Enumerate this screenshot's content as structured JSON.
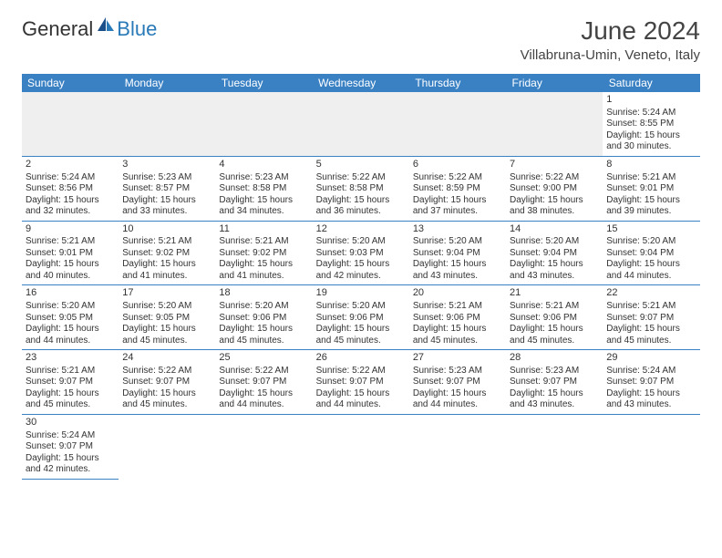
{
  "logo": {
    "text1": "General",
    "text2": "Blue"
  },
  "title": "June 2024",
  "location": "Villabruna-Umin, Veneto, Italy",
  "colors": {
    "header_bg": "#3a81c4",
    "header_text": "#ffffff",
    "blank_bg": "#efefef",
    "border": "#3a81c4",
    "logo_blue": "#2a7ab8",
    "text": "#333333"
  },
  "dayHeaders": [
    "Sunday",
    "Monday",
    "Tuesday",
    "Wednesday",
    "Thursday",
    "Friday",
    "Saturday"
  ],
  "weeks": [
    [
      null,
      null,
      null,
      null,
      null,
      null,
      {
        "n": "1",
        "sr": "Sunrise: 5:24 AM",
        "ss": "Sunset: 8:55 PM",
        "dl": "Daylight: 15 hours and 30 minutes."
      }
    ],
    [
      {
        "n": "2",
        "sr": "Sunrise: 5:24 AM",
        "ss": "Sunset: 8:56 PM",
        "dl": "Daylight: 15 hours and 32 minutes."
      },
      {
        "n": "3",
        "sr": "Sunrise: 5:23 AM",
        "ss": "Sunset: 8:57 PM",
        "dl": "Daylight: 15 hours and 33 minutes."
      },
      {
        "n": "4",
        "sr": "Sunrise: 5:23 AM",
        "ss": "Sunset: 8:58 PM",
        "dl": "Daylight: 15 hours and 34 minutes."
      },
      {
        "n": "5",
        "sr": "Sunrise: 5:22 AM",
        "ss": "Sunset: 8:58 PM",
        "dl": "Daylight: 15 hours and 36 minutes."
      },
      {
        "n": "6",
        "sr": "Sunrise: 5:22 AM",
        "ss": "Sunset: 8:59 PM",
        "dl": "Daylight: 15 hours and 37 minutes."
      },
      {
        "n": "7",
        "sr": "Sunrise: 5:22 AM",
        "ss": "Sunset: 9:00 PM",
        "dl": "Daylight: 15 hours and 38 minutes."
      },
      {
        "n": "8",
        "sr": "Sunrise: 5:21 AM",
        "ss": "Sunset: 9:01 PM",
        "dl": "Daylight: 15 hours and 39 minutes."
      }
    ],
    [
      {
        "n": "9",
        "sr": "Sunrise: 5:21 AM",
        "ss": "Sunset: 9:01 PM",
        "dl": "Daylight: 15 hours and 40 minutes."
      },
      {
        "n": "10",
        "sr": "Sunrise: 5:21 AM",
        "ss": "Sunset: 9:02 PM",
        "dl": "Daylight: 15 hours and 41 minutes."
      },
      {
        "n": "11",
        "sr": "Sunrise: 5:21 AM",
        "ss": "Sunset: 9:02 PM",
        "dl": "Daylight: 15 hours and 41 minutes."
      },
      {
        "n": "12",
        "sr": "Sunrise: 5:20 AM",
        "ss": "Sunset: 9:03 PM",
        "dl": "Daylight: 15 hours and 42 minutes."
      },
      {
        "n": "13",
        "sr": "Sunrise: 5:20 AM",
        "ss": "Sunset: 9:04 PM",
        "dl": "Daylight: 15 hours and 43 minutes."
      },
      {
        "n": "14",
        "sr": "Sunrise: 5:20 AM",
        "ss": "Sunset: 9:04 PM",
        "dl": "Daylight: 15 hours and 43 minutes."
      },
      {
        "n": "15",
        "sr": "Sunrise: 5:20 AM",
        "ss": "Sunset: 9:04 PM",
        "dl": "Daylight: 15 hours and 44 minutes."
      }
    ],
    [
      {
        "n": "16",
        "sr": "Sunrise: 5:20 AM",
        "ss": "Sunset: 9:05 PM",
        "dl": "Daylight: 15 hours and 44 minutes."
      },
      {
        "n": "17",
        "sr": "Sunrise: 5:20 AM",
        "ss": "Sunset: 9:05 PM",
        "dl": "Daylight: 15 hours and 45 minutes."
      },
      {
        "n": "18",
        "sr": "Sunrise: 5:20 AM",
        "ss": "Sunset: 9:06 PM",
        "dl": "Daylight: 15 hours and 45 minutes."
      },
      {
        "n": "19",
        "sr": "Sunrise: 5:20 AM",
        "ss": "Sunset: 9:06 PM",
        "dl": "Daylight: 15 hours and 45 minutes."
      },
      {
        "n": "20",
        "sr": "Sunrise: 5:21 AM",
        "ss": "Sunset: 9:06 PM",
        "dl": "Daylight: 15 hours and 45 minutes."
      },
      {
        "n": "21",
        "sr": "Sunrise: 5:21 AM",
        "ss": "Sunset: 9:06 PM",
        "dl": "Daylight: 15 hours and 45 minutes."
      },
      {
        "n": "22",
        "sr": "Sunrise: 5:21 AM",
        "ss": "Sunset: 9:07 PM",
        "dl": "Daylight: 15 hours and 45 minutes."
      }
    ],
    [
      {
        "n": "23",
        "sr": "Sunrise: 5:21 AM",
        "ss": "Sunset: 9:07 PM",
        "dl": "Daylight: 15 hours and 45 minutes."
      },
      {
        "n": "24",
        "sr": "Sunrise: 5:22 AM",
        "ss": "Sunset: 9:07 PM",
        "dl": "Daylight: 15 hours and 45 minutes."
      },
      {
        "n": "25",
        "sr": "Sunrise: 5:22 AM",
        "ss": "Sunset: 9:07 PM",
        "dl": "Daylight: 15 hours and 44 minutes."
      },
      {
        "n": "26",
        "sr": "Sunrise: 5:22 AM",
        "ss": "Sunset: 9:07 PM",
        "dl": "Daylight: 15 hours and 44 minutes."
      },
      {
        "n": "27",
        "sr": "Sunrise: 5:23 AM",
        "ss": "Sunset: 9:07 PM",
        "dl": "Daylight: 15 hours and 44 minutes."
      },
      {
        "n": "28",
        "sr": "Sunrise: 5:23 AM",
        "ss": "Sunset: 9:07 PM",
        "dl": "Daylight: 15 hours and 43 minutes."
      },
      {
        "n": "29",
        "sr": "Sunrise: 5:24 AM",
        "ss": "Sunset: 9:07 PM",
        "dl": "Daylight: 15 hours and 43 minutes."
      }
    ],
    [
      {
        "n": "30",
        "sr": "Sunrise: 5:24 AM",
        "ss": "Sunset: 9:07 PM",
        "dl": "Daylight: 15 hours and 42 minutes."
      },
      null,
      null,
      null,
      null,
      null,
      null
    ]
  ]
}
